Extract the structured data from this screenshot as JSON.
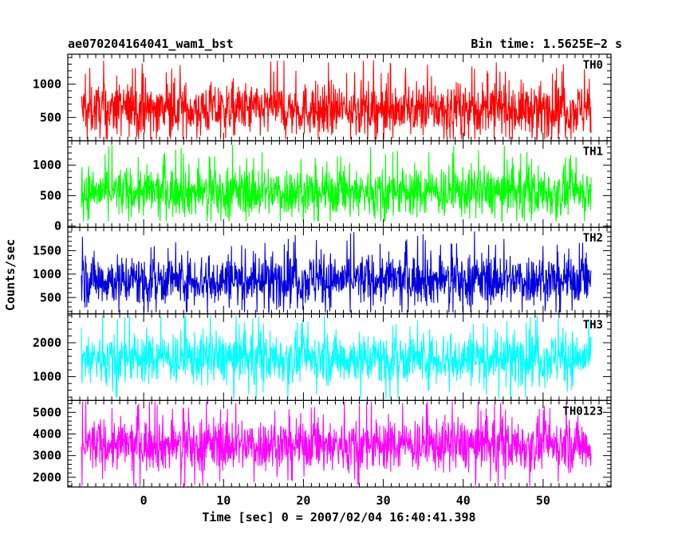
{
  "header": {
    "title": "ae070204164041_wam1_bst",
    "bin_time": "Bin time: 1.5625E−2 s"
  },
  "chart_data": {
    "type": "line",
    "xlabel": "Time [sec] 0 = 2007/02/04 16:40:41.398",
    "ylabel": "Counts/sec",
    "xlim": [
      -9.5,
      58.5
    ],
    "x_ticks": [
      0,
      10,
      20,
      30,
      40,
      50
    ],
    "x_tick_labels": [
      "0",
      "10",
      "20",
      "30",
      "40",
      "50"
    ],
    "data_x_range": [
      -7.8,
      56.0
    ],
    "grid": false,
    "panels": [
      {
        "name": "TH0",
        "color": "#ff0000",
        "ylim": [
          150,
          1450
        ],
        "y_ticks": [
          500,
          1000
        ],
        "y_tick_labels": [
          "500",
          "1000"
        ],
        "y_minor_step": 100,
        "mean": 620,
        "low": 170,
        "high": 1430
      },
      {
        "name": "TH1",
        "color": "#00ff00",
        "ylim": [
          -20,
          1400
        ],
        "y_ticks": [
          0,
          500,
          1000
        ],
        "y_tick_labels": [
          "0",
          "500",
          "1000"
        ],
        "y_minor_step": 100,
        "mean": 560,
        "low": 80,
        "high": 1400
      },
      {
        "name": "TH2",
        "color": "#0000dd",
        "ylim": [
          150,
          2000
        ],
        "y_ticks": [
          500,
          1000,
          1500
        ],
        "y_tick_labels": [
          "500",
          "1000",
          "1500"
        ],
        "y_minor_step": 100,
        "mean": 880,
        "low": 180,
        "high": 1950
      },
      {
        "name": "TH3",
        "color": "#00ffff",
        "ylim": [
          300,
          2850
        ],
        "y_ticks": [
          1000,
          2000
        ],
        "y_tick_labels": [
          "1000",
          "2000"
        ],
        "y_minor_step": 200,
        "mean": 1550,
        "low": 350,
        "high": 2800
      },
      {
        "name": "TH0123",
        "color": "#ff00ff",
        "ylim": [
          1550,
          5550
        ],
        "y_ticks": [
          2000,
          3000,
          4000,
          5000
        ],
        "y_tick_labels": [
          "2000",
          "3000",
          "4000",
          "5000"
        ],
        "y_minor_step": 200,
        "mean": 3500,
        "low": 1600,
        "high": 5500
      }
    ]
  }
}
